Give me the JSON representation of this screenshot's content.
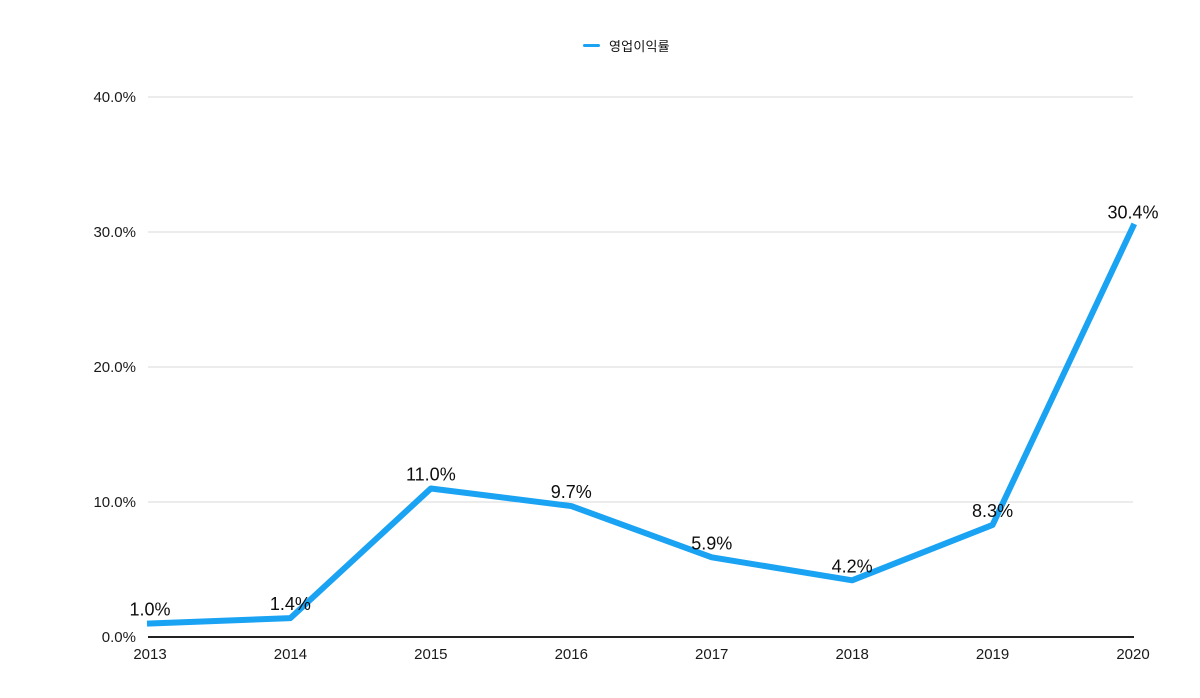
{
  "legend": {
    "label": "영업이익률"
  },
  "colors": {
    "line": "#1AA2F3",
    "grid": "#D9D9D9",
    "axis": "#222222",
    "text": "#1a1a1a"
  },
  "chart_data": {
    "type": "line",
    "x": [
      "2013",
      "2014",
      "2015",
      "2016",
      "2017",
      "2018",
      "2019",
      "2020"
    ],
    "series": [
      {
        "name": "영업이익률",
        "values": [
          1.0,
          1.4,
          11.0,
          9.7,
          5.9,
          4.2,
          8.3,
          30.4
        ]
      }
    ],
    "point_labels": [
      "1.0%",
      "1.4%",
      "11.0%",
      "9.7%",
      "5.9%",
      "4.2%",
      "8.3%",
      "30.4%"
    ],
    "title": "",
    "xlabel": "",
    "ylabel": "",
    "ylim": [
      0,
      40
    ],
    "yticks": [
      0,
      10,
      20,
      30,
      40
    ],
    "ytick_labels": [
      "0.0%",
      "10.0%",
      "20.0%",
      "30.0%",
      "40.0%"
    ],
    "grid": true,
    "legend_position": "top-center"
  }
}
